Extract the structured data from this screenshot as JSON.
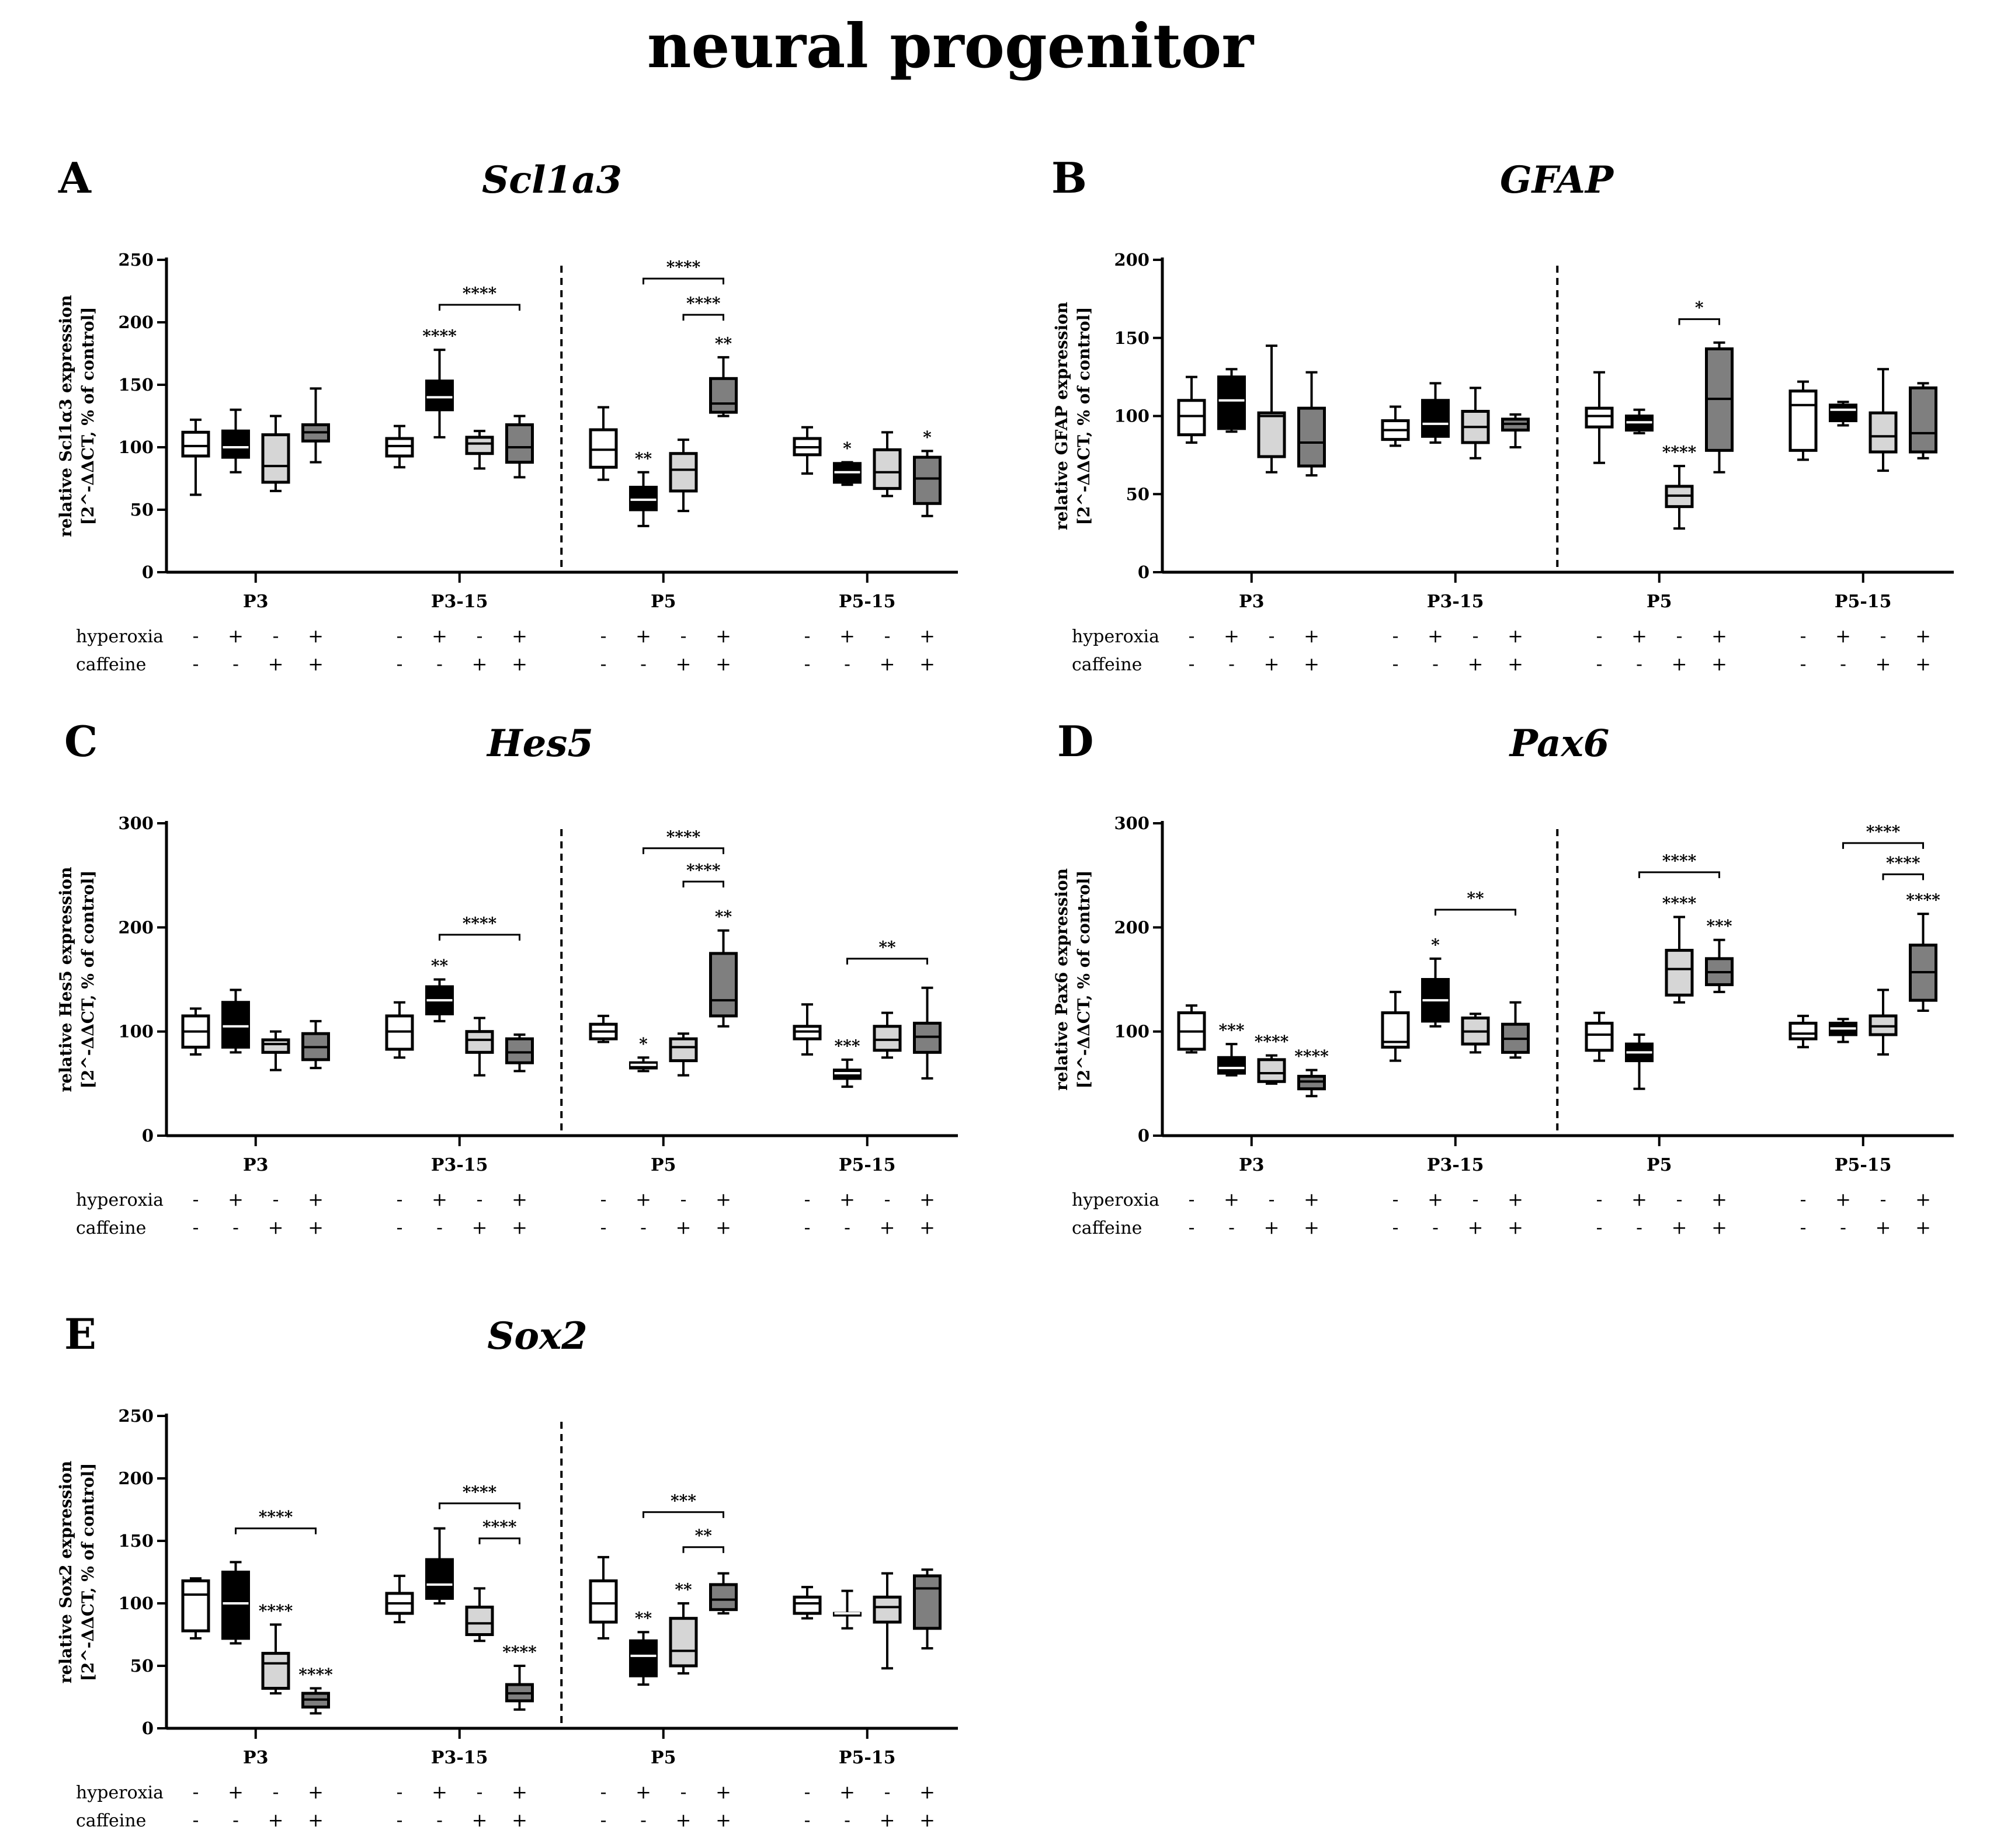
{
  "title": "neural progenitor",
  "legend_rows": [
    "hyperoxia",
    "caffeine"
  ],
  "chart_data": [
    {
      "type": "box",
      "letter": "A",
      "gene": "Scl1a3",
      "ylabel": [
        "relative Scl1α3 expression",
        "[2^-ΔΔCT, % of control]"
      ],
      "ylim": [
        0,
        250
      ],
      "yticks": [
        "0",
        "50",
        "100",
        "150",
        "200",
        "250"
      ],
      "groups": [
        "P3",
        "P3-15",
        "P5",
        "P5-15"
      ],
      "hyperoxia_signs": [
        "-",
        "+",
        "-",
        "+",
        "-",
        "+",
        "-",
        "+",
        "-",
        "+",
        "-",
        "+",
        "-",
        "+",
        "-",
        "+"
      ],
      "caffeine_signs": [
        "-",
        "-",
        "+",
        "+",
        "-",
        "-",
        "+",
        "+",
        "-",
        "-",
        "+",
        "+",
        "-",
        "-",
        "+",
        "+"
      ],
      "boxes": [
        {
          "min": 62,
          "q1": 93,
          "med": 101,
          "q3": 112,
          "max": 122,
          "star": ""
        },
        {
          "min": 80,
          "q1": 92,
          "med": 100,
          "q3": 113,
          "max": 130,
          "star": ""
        },
        {
          "min": 65,
          "q1": 72,
          "med": 85,
          "q3": 110,
          "max": 125,
          "star": ""
        },
        {
          "min": 88,
          "q1": 105,
          "med": 112,
          "q3": 118,
          "max": 147,
          "star": ""
        },
        {
          "min": 84,
          "q1": 93,
          "med": 101,
          "q3": 107,
          "max": 117,
          "star": ""
        },
        {
          "min": 108,
          "q1": 130,
          "med": 140,
          "q3": 153,
          "max": 178,
          "star": "****"
        },
        {
          "min": 83,
          "q1": 95,
          "med": 103,
          "q3": 108,
          "max": 113,
          "star": ""
        },
        {
          "min": 76,
          "q1": 88,
          "med": 100,
          "q3": 118,
          "max": 125,
          "star": ""
        },
        {
          "min": 74,
          "q1": 84,
          "med": 98,
          "q3": 114,
          "max": 132,
          "star": ""
        },
        {
          "min": 37,
          "q1": 50,
          "med": 58,
          "q3": 68,
          "max": 80,
          "star": "**"
        },
        {
          "min": 49,
          "q1": 65,
          "med": 82,
          "q3": 95,
          "max": 106,
          "star": ""
        },
        {
          "min": 125,
          "q1": 128,
          "med": 135,
          "q3": 155,
          "max": 172,
          "star": "**"
        },
        {
          "min": 79,
          "q1": 94,
          "med": 100,
          "q3": 107,
          "max": 116,
          "star": ""
        },
        {
          "min": 70,
          "q1": 72,
          "med": 80,
          "q3": 87,
          "max": 88,
          "star": "*"
        },
        {
          "min": 61,
          "q1": 67,
          "med": 80,
          "q3": 98,
          "max": 112,
          "star": ""
        },
        {
          "min": 45,
          "q1": 55,
          "med": 75,
          "q3": 92,
          "max": 97,
          "star": "*"
        }
      ],
      "brackets": [
        {
          "from": 5,
          "to": 7,
          "y": 214,
          "label": "****"
        },
        {
          "from": 9,
          "to": 11,
          "y": 235,
          "label": "****"
        },
        {
          "from": 10,
          "to": 11,
          "y": 206,
          "label": "****"
        }
      ],
      "divider_after_group": 1
    },
    {
      "type": "box",
      "letter": "B",
      "gene": "GFAP",
      "ylabel": [
        "relative GFAP expression",
        "[2^-ΔΔCT, % of control]"
      ],
      "ylim": [
        0,
        200
      ],
      "yticks": [
        "0",
        "50",
        "100",
        "150",
        "200"
      ],
      "groups": [
        "P3",
        "P3-15",
        "P5",
        "P5-15"
      ],
      "hyperoxia_signs": [
        "-",
        "+",
        "-",
        "+",
        "-",
        "+",
        "-",
        "+",
        "-",
        "+",
        "-",
        "+",
        "-",
        "+",
        "-",
        "+"
      ],
      "caffeine_signs": [
        "-",
        "-",
        "+",
        "+",
        "-",
        "-",
        "+",
        "+",
        "-",
        "-",
        "+",
        "+",
        "-",
        "-",
        "+",
        "+"
      ],
      "boxes": [
        {
          "min": 83,
          "q1": 88,
          "med": 100,
          "q3": 110,
          "max": 125,
          "star": ""
        },
        {
          "min": 90,
          "q1": 92,
          "med": 110,
          "q3": 125,
          "max": 130,
          "star": ""
        },
        {
          "min": 64,
          "q1": 74,
          "med": 100,
          "q3": 102,
          "max": 145,
          "star": ""
        },
        {
          "min": 62,
          "q1": 68,
          "med": 83,
          "q3": 105,
          "max": 128,
          "star": ""
        },
        {
          "min": 81,
          "q1": 85,
          "med": 91,
          "q3": 97,
          "max": 106,
          "star": ""
        },
        {
          "min": 83,
          "q1": 87,
          "med": 95,
          "q3": 110,
          "max": 121,
          "star": ""
        },
        {
          "min": 73,
          "q1": 83,
          "med": 93,
          "q3": 103,
          "max": 118,
          "star": ""
        },
        {
          "min": 80,
          "q1": 91,
          "med": 95,
          "q3": 98,
          "max": 101,
          "star": ""
        },
        {
          "min": 70,
          "q1": 93,
          "med": 100,
          "q3": 105,
          "max": 128,
          "star": ""
        },
        {
          "min": 89,
          "q1": 91,
          "med": 96,
          "q3": 100,
          "max": 104,
          "star": ""
        },
        {
          "min": 28,
          "q1": 42,
          "med": 49,
          "q3": 55,
          "max": 68,
          "star": "****"
        },
        {
          "min": 64,
          "q1": 78,
          "med": 111,
          "q3": 143,
          "max": 147,
          "star": ""
        },
        {
          "min": 72,
          "q1": 78,
          "med": 107,
          "q3": 116,
          "max": 122,
          "star": ""
        },
        {
          "min": 94,
          "q1": 97,
          "med": 104,
          "q3": 107,
          "max": 109,
          "star": ""
        },
        {
          "min": 65,
          "q1": 77,
          "med": 87,
          "q3": 102,
          "max": 130,
          "star": ""
        },
        {
          "min": 73,
          "q1": 77,
          "med": 89,
          "q3": 118,
          "max": 121,
          "star": ""
        }
      ],
      "brackets": [
        {
          "from": 10,
          "to": 11,
          "y": 162,
          "label": "*"
        }
      ],
      "divider_after_group": 1
    },
    {
      "type": "box",
      "letter": "C",
      "gene": "Hes5",
      "ylabel": [
        "relative Hes5 expression",
        "[2^-ΔΔCT, % of control]"
      ],
      "ylim": [
        0,
        300
      ],
      "yticks": [
        "0",
        "100",
        "200",
        "300"
      ],
      "groups": [
        "P3",
        "P3-15",
        "P5",
        "P5-15"
      ],
      "hyperoxia_signs": [
        "-",
        "+",
        "-",
        "+",
        "-",
        "+",
        "-",
        "+",
        "-",
        "+",
        "-",
        "+",
        "-",
        "+",
        "-",
        "+"
      ],
      "caffeine_signs": [
        "-",
        "-",
        "+",
        "+",
        "-",
        "-",
        "+",
        "+",
        "-",
        "-",
        "+",
        "+",
        "-",
        "-",
        "+",
        "+"
      ],
      "boxes": [
        {
          "min": 78,
          "q1": 85,
          "med": 100,
          "q3": 115,
          "max": 122,
          "star": ""
        },
        {
          "min": 80,
          "q1": 85,
          "med": 105,
          "q3": 128,
          "max": 140,
          "star": ""
        },
        {
          "min": 63,
          "q1": 80,
          "med": 88,
          "q3": 92,
          "max": 100,
          "star": ""
        },
        {
          "min": 65,
          "q1": 73,
          "med": 85,
          "q3": 98,
          "max": 110,
          "star": ""
        },
        {
          "min": 75,
          "q1": 83,
          "med": 100,
          "q3": 115,
          "max": 128,
          "star": ""
        },
        {
          "min": 110,
          "q1": 117,
          "med": 130,
          "q3": 143,
          "max": 150,
          "star": "**"
        },
        {
          "min": 58,
          "q1": 80,
          "med": 92,
          "q3": 100,
          "max": 113,
          "star": ""
        },
        {
          "min": 62,
          "q1": 70,
          "med": 80,
          "q3": 93,
          "max": 97,
          "star": ""
        },
        {
          "min": 90,
          "q1": 93,
          "med": 100,
          "q3": 107,
          "max": 115,
          "star": ""
        },
        {
          "min": 62,
          "q1": 65,
          "med": 68,
          "q3": 70,
          "max": 75,
          "star": "*"
        },
        {
          "min": 58,
          "q1": 72,
          "med": 85,
          "q3": 93,
          "max": 98,
          "star": ""
        },
        {
          "min": 105,
          "q1": 115,
          "med": 130,
          "q3": 175,
          "max": 197,
          "star": "**"
        },
        {
          "min": 78,
          "q1": 93,
          "med": 100,
          "q3": 105,
          "max": 126,
          "star": ""
        },
        {
          "min": 47,
          "q1": 55,
          "med": 60,
          "q3": 63,
          "max": 73,
          "star": "***"
        },
        {
          "min": 75,
          "q1": 82,
          "med": 92,
          "q3": 105,
          "max": 118,
          "star": ""
        },
        {
          "min": 55,
          "q1": 80,
          "med": 95,
          "q3": 108,
          "max": 142,
          "star": ""
        }
      ],
      "brackets": [
        {
          "from": 5,
          "to": 7,
          "y": 193,
          "label": "****"
        },
        {
          "from": 9,
          "to": 11,
          "y": 276,
          "label": "****"
        },
        {
          "from": 10,
          "to": 11,
          "y": 244,
          "label": "****"
        },
        {
          "from": 13,
          "to": 15,
          "y": 170,
          "label": "**"
        }
      ],
      "divider_after_group": 1
    },
    {
      "type": "box",
      "letter": "D",
      "gene": "Pax6",
      "ylabel": [
        "relative Pax6 expression",
        "[2^-ΔΔCT, % of control]"
      ],
      "ylim": [
        0,
        300
      ],
      "yticks": [
        "0",
        "100",
        "200",
        "300"
      ],
      "groups": [
        "P3",
        "P3-15",
        "P5",
        "P5-15"
      ],
      "hyperoxia_signs": [
        "-",
        "+",
        "-",
        "+",
        "-",
        "+",
        "-",
        "+",
        "-",
        "+",
        "-",
        "+",
        "-",
        "+",
        "-",
        "+"
      ],
      "caffeine_signs": [
        "-",
        "-",
        "+",
        "+",
        "-",
        "-",
        "+",
        "+",
        "-",
        "-",
        "+",
        "+",
        "-",
        "-",
        "+",
        "+"
      ],
      "boxes": [
        {
          "min": 80,
          "q1": 83,
          "med": 100,
          "q3": 118,
          "max": 125,
          "star": ""
        },
        {
          "min": 58,
          "q1": 60,
          "med": 65,
          "q3": 75,
          "max": 88,
          "star": "***"
        },
        {
          "min": 50,
          "q1": 52,
          "med": 60,
          "q3": 73,
          "max": 77,
          "star": "****"
        },
        {
          "min": 38,
          "q1": 45,
          "med": 52,
          "q3": 57,
          "max": 63,
          "star": "****"
        },
        {
          "min": 72,
          "q1": 85,
          "med": 90,
          "q3": 118,
          "max": 138,
          "star": ""
        },
        {
          "min": 105,
          "q1": 110,
          "med": 130,
          "q3": 150,
          "max": 170,
          "star": "*"
        },
        {
          "min": 80,
          "q1": 88,
          "med": 100,
          "q3": 113,
          "max": 117,
          "star": ""
        },
        {
          "min": 75,
          "q1": 80,
          "med": 93,
          "q3": 107,
          "max": 128,
          "star": ""
        },
        {
          "min": 72,
          "q1": 82,
          "med": 97,
          "q3": 108,
          "max": 118,
          "star": ""
        },
        {
          "min": 45,
          "q1": 72,
          "med": 80,
          "q3": 88,
          "max": 97,
          "star": ""
        },
        {
          "min": 128,
          "q1": 135,
          "med": 160,
          "q3": 178,
          "max": 210,
          "star": "****"
        },
        {
          "min": 138,
          "q1": 145,
          "med": 157,
          "q3": 170,
          "max": 188,
          "star": "***"
        },
        {
          "min": 85,
          "q1": 93,
          "med": 98,
          "q3": 108,
          "max": 115,
          "star": ""
        },
        {
          "min": 90,
          "q1": 97,
          "med": 103,
          "q3": 108,
          "max": 112,
          "star": ""
        },
        {
          "min": 78,
          "q1": 97,
          "med": 105,
          "q3": 115,
          "max": 140,
          "star": ""
        },
        {
          "min": 120,
          "q1": 130,
          "med": 157,
          "q3": 183,
          "max": 213,
          "star": "****"
        }
      ],
      "brackets": [
        {
          "from": 5,
          "to": 7,
          "y": 217,
          "label": "**"
        },
        {
          "from": 9,
          "to": 11,
          "y": 253,
          "label": "****"
        },
        {
          "from": 13,
          "to": 15,
          "y": 281,
          "label": "****"
        },
        {
          "from": 14,
          "to": 15,
          "y": 251,
          "label": "****"
        }
      ],
      "divider_after_group": 1
    },
    {
      "type": "box",
      "letter": "E",
      "gene": "Sox2",
      "ylabel": [
        "relative Sox2 expression",
        "[2^-ΔΔCT, % of control]"
      ],
      "ylim": [
        0,
        250
      ],
      "yticks": [
        "0",
        "50",
        "100",
        "150",
        "200",
        "250"
      ],
      "groups": [
        "P3",
        "P3-15",
        "P5",
        "P5-15"
      ],
      "hyperoxia_signs": [
        "-",
        "+",
        "-",
        "+",
        "-",
        "+",
        "-",
        "+",
        "-",
        "+",
        "-",
        "+",
        "-",
        "+",
        "-",
        "+"
      ],
      "caffeine_signs": [
        "-",
        "-",
        "+",
        "+",
        "-",
        "-",
        "+",
        "+",
        "-",
        "-",
        "+",
        "+",
        "-",
        "-",
        "+",
        "+"
      ],
      "boxes": [
        {
          "min": 72,
          "q1": 78,
          "med": 107,
          "q3": 118,
          "max": 120,
          "star": ""
        },
        {
          "min": 68,
          "q1": 72,
          "med": 100,
          "q3": 125,
          "max": 133,
          "star": ""
        },
        {
          "min": 28,
          "q1": 32,
          "med": 52,
          "q3": 60,
          "max": 83,
          "star": "****"
        },
        {
          "min": 12,
          "q1": 17,
          "med": 23,
          "q3": 28,
          "max": 32,
          "star": "****"
        },
        {
          "min": 85,
          "q1": 92,
          "med": 100,
          "q3": 108,
          "max": 122,
          "star": ""
        },
        {
          "min": 100,
          "q1": 104,
          "med": 115,
          "q3": 135,
          "max": 160,
          "star": ""
        },
        {
          "min": 70,
          "q1": 75,
          "med": 84,
          "q3": 97,
          "max": 112,
          "star": ""
        },
        {
          "min": 15,
          "q1": 22,
          "med": 28,
          "q3": 35,
          "max": 50,
          "star": "****"
        },
        {
          "min": 72,
          "q1": 85,
          "med": 100,
          "q3": 118,
          "max": 137,
          "star": ""
        },
        {
          "min": 35,
          "q1": 42,
          "med": 58,
          "q3": 70,
          "max": 77,
          "star": "**"
        },
        {
          "min": 44,
          "q1": 50,
          "med": 62,
          "q3": 88,
          "max": 100,
          "star": "**"
        },
        {
          "min": 92,
          "q1": 95,
          "med": 103,
          "q3": 115,
          "max": 124,
          "star": ""
        },
        {
          "min": 88,
          "q1": 92,
          "med": 100,
          "q3": 105,
          "max": 113,
          "star": ""
        },
        {
          "min": 80,
          "q1": 92,
          "med": 92,
          "q3": 92,
          "max": 110,
          "star": ""
        },
        {
          "min": 48,
          "q1": 85,
          "med": 97,
          "q3": 105,
          "max": 124,
          "star": ""
        },
        {
          "min": 64,
          "q1": 80,
          "med": 112,
          "q3": 122,
          "max": 127,
          "star": ""
        }
      ],
      "brackets": [
        {
          "from": 1,
          "to": 3,
          "y": 160,
          "label": "****"
        },
        {
          "from": 5,
          "to": 7,
          "y": 180,
          "label": "****"
        },
        {
          "from": 6,
          "to": 7,
          "y": 152,
          "label": "****"
        },
        {
          "from": 9,
          "to": 11,
          "y": 173,
          "label": "***"
        },
        {
          "from": 10,
          "to": 11,
          "y": 145,
          "label": "**"
        }
      ],
      "divider_after_group": 1
    }
  ]
}
